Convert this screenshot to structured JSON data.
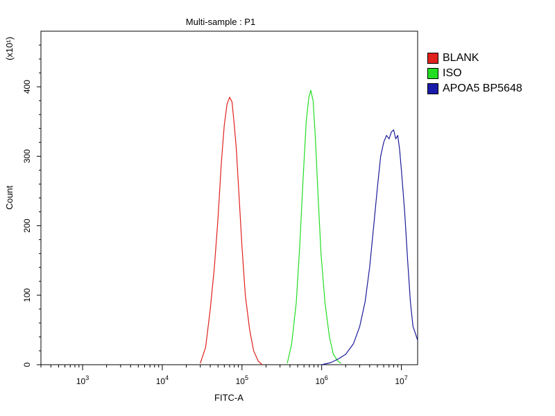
{
  "chart_data": {
    "type": "line",
    "title": "Multi-sample : P1",
    "xlabel": "FITC-A",
    "ylabel": "Count",
    "y_multiplier_label": "(x10¹)",
    "x_scale": "log",
    "xlim": [
      300,
      16000000
    ],
    "ylim": [
      0,
      480
    ],
    "x_ticks": [
      1000,
      10000,
      100000,
      1000000,
      10000000
    ],
    "x_tick_labels": [
      {
        "base": "10",
        "exp": "3"
      },
      {
        "base": "10",
        "exp": "4"
      },
      {
        "base": "10",
        "exp": "5"
      },
      {
        "base": "10",
        "exp": "6"
      },
      {
        "base": "10",
        "exp": "7"
      }
    ],
    "y_ticks": [
      0,
      100,
      200,
      300,
      400
    ],
    "y_tick_labels": [
      "0",
      "100",
      "200",
      "300",
      "400"
    ],
    "grid": false,
    "legend_position": "right",
    "series": [
      {
        "name": "BLANK",
        "color": "#e0201c",
        "x": [
          30000,
          35000,
          40000,
          45000,
          50000,
          55000,
          60000,
          65000,
          70000,
          75000,
          80000,
          85000,
          90000,
          100000,
          110000,
          125000,
          140000,
          160000,
          180000
        ],
        "y": [
          2,
          25,
          80,
          140,
          210,
          290,
          345,
          375,
          385,
          378,
          345,
          310,
          260,
          170,
          100,
          50,
          20,
          5,
          0
        ]
      },
      {
        "name": "ISO",
        "color": "#22dd22",
        "x": [
          370000,
          420000,
          480000,
          530000,
          580000,
          640000,
          690000,
          730000,
          780000,
          830000,
          900000,
          980000,
          1100000,
          1250000,
          1400000,
          1600000,
          1750000
        ],
        "y": [
          2,
          30,
          90,
          170,
          260,
          350,
          385,
          395,
          380,
          330,
          245,
          160,
          90,
          40,
          15,
          5,
          2
        ]
      },
      {
        "name": "APOA5 BP5648",
        "color": "#1a1a9a",
        "x": [
          1000000,
          1300000,
          1600000,
          2000000,
          2500000,
          3000000,
          3500000,
          4000000,
          4500000,
          5000000,
          5500000,
          6000000,
          6500000,
          7000000,
          7500000,
          8000000,
          8500000,
          9000000,
          9500000,
          10000000,
          11000000,
          12000000,
          13000000,
          14000000,
          15000000,
          16000000
        ],
        "y": [
          0,
          3,
          8,
          15,
          30,
          55,
          90,
          140,
          200,
          255,
          300,
          320,
          330,
          325,
          335,
          338,
          325,
          330,
          310,
          280,
          220,
          150,
          90,
          55,
          45,
          35
        ]
      }
    ]
  }
}
